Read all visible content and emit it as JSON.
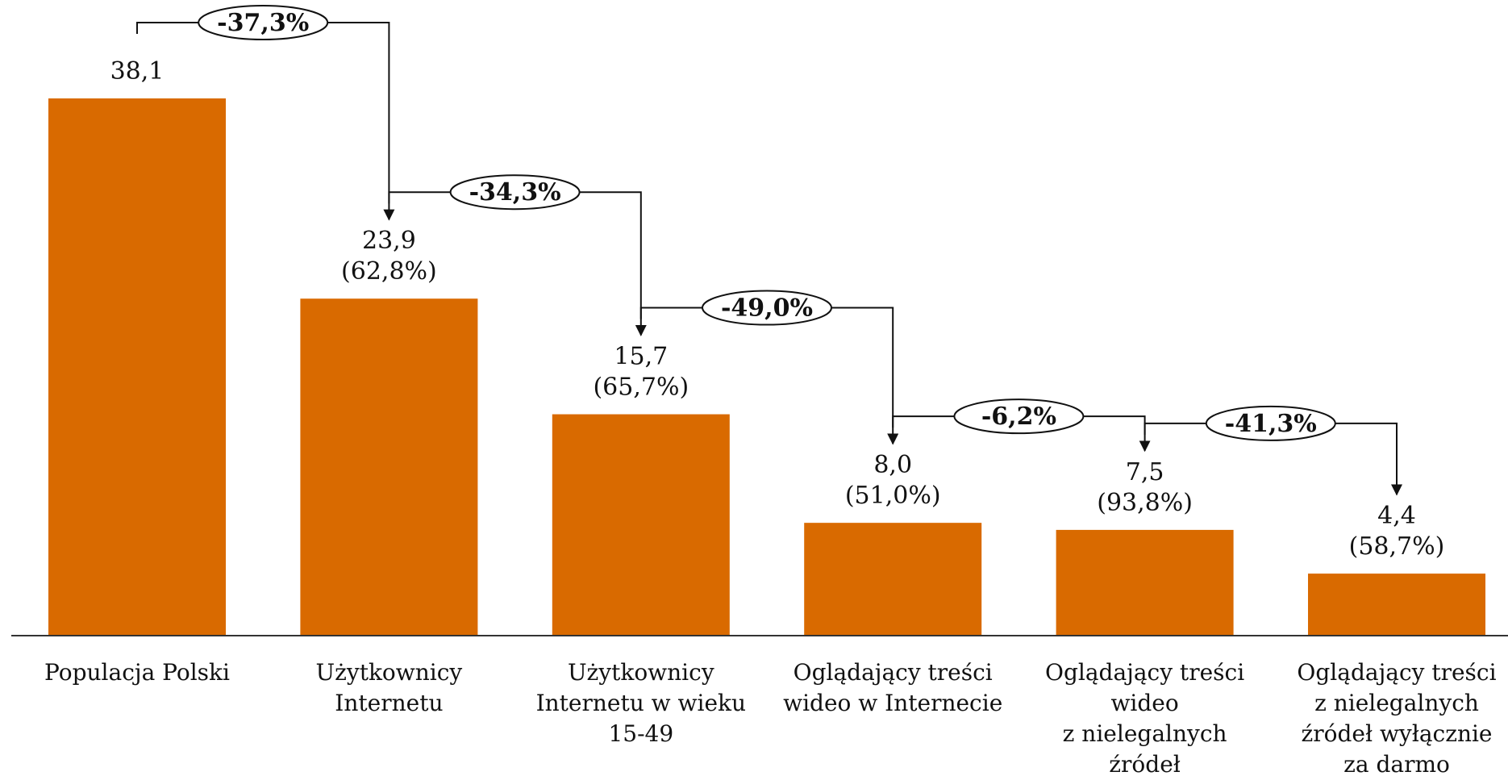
{
  "chart_data": {
    "type": "bar",
    "categories": [
      "Populacja Polski",
      "Użytkownicy Internetu",
      "Użytkownicy Internetu w wieku 15-49",
      "Oglądający treści wideo w Internecie",
      "Oglądający treści wideo z nielegalnych źródeł",
      "Oglądający treści z nielegalnych źródeł wyłącznie za darmo"
    ],
    "category_label_lines": [
      [
        "Populacja Polski"
      ],
      [
        "Użytkownicy",
        "Internetu"
      ],
      [
        "Użytkownicy",
        "Internetu w wieku",
        "15-49"
      ],
      [
        "Oglądający treści",
        "wideo w Internecie"
      ],
      [
        "Oglądający treści",
        "wideo",
        "z nielegalnych",
        "źródeł"
      ],
      [
        "Oglądający treści",
        "z nielegalnych",
        "źródeł wyłącznie",
        "za darmo"
      ]
    ],
    "values": [
      38.1,
      23.9,
      15.7,
      8.0,
      7.5,
      4.4
    ],
    "value_labels": [
      "38,1",
      "23,9",
      "15,7",
      "8,0",
      "7,5",
      "4,4"
    ],
    "share_labels": [
      "",
      "(62,8%)",
      "(65,7%)",
      "(51,0%)",
      "(93,8%)",
      "(58,7%)"
    ],
    "drops": [
      "-37,3%",
      "-34,3%",
      "-49,0%",
      "-6,2%",
      "-41,3%"
    ],
    "ylim": [
      0,
      45.5
    ],
    "bar_color": "#D96A00",
    "grid": false,
    "title": "",
    "xlabel": "",
    "ylabel": ""
  }
}
